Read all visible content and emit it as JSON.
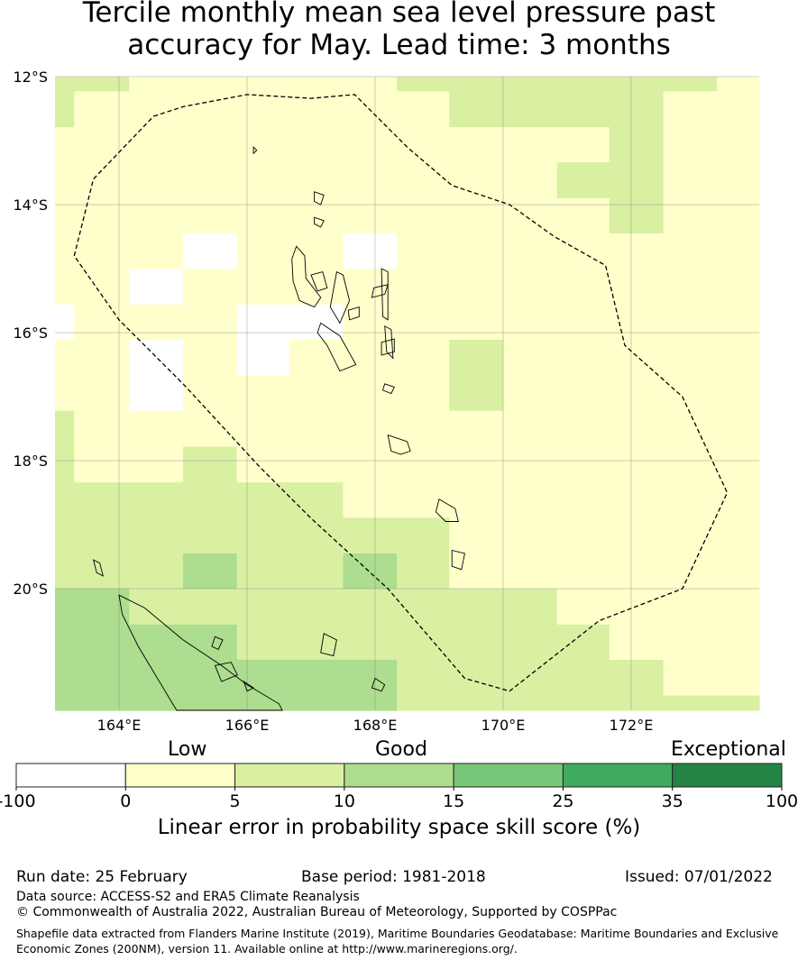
{
  "title_line1": "Tercile monthly mean sea level pressure past",
  "title_line2": "accuracy for May. Lead time: 3 months",
  "map": {
    "lon_range": [
      163.0,
      174.0
    ],
    "lat_range": [
      -21.9,
      -12.0
    ],
    "lat_ticks": [
      {
        "value": -12,
        "label": "12°S"
      },
      {
        "value": -14,
        "label": "14°S"
      },
      {
        "value": -16,
        "label": "16°S"
      },
      {
        "value": -18,
        "label": "18°S"
      },
      {
        "value": -20,
        "label": "20°S"
      }
    ],
    "lon_ticks": [
      {
        "value": 164,
        "label": "164°E"
      },
      {
        "value": 166,
        "label": "166°E"
      },
      {
        "value": 168,
        "label": "168°E"
      },
      {
        "value": 170,
        "label": "170°E"
      },
      {
        "value": 172,
        "label": "172°E"
      }
    ],
    "grid": true,
    "eez_boundary": [
      [
        164.54,
        -12.62
      ],
      [
        165.0,
        -12.47
      ],
      [
        166.0,
        -12.28
      ],
      [
        167.0,
        -12.34
      ],
      [
        167.68,
        -12.28
      ],
      [
        168.5,
        -13.1
      ],
      [
        169.2,
        -13.7
      ],
      [
        170.1,
        -14.0
      ],
      [
        170.8,
        -14.5
      ],
      [
        171.6,
        -14.95
      ],
      [
        171.9,
        -16.2
      ],
      [
        172.8,
        -17.0
      ],
      [
        173.5,
        -18.5
      ],
      [
        172.8,
        -20.0
      ],
      [
        171.5,
        -20.5
      ],
      [
        170.1,
        -21.6
      ],
      [
        169.4,
        -21.4
      ],
      [
        168.2,
        -20.0
      ],
      [
        167.0,
        -18.9
      ],
      [
        166.2,
        -18.1
      ],
      [
        165.0,
        -16.8
      ],
      [
        164.0,
        -15.8
      ],
      [
        163.3,
        -14.8
      ],
      [
        163.6,
        -13.6
      ]
    ],
    "skill_grid": {
      "lon_edges": [
        163.0,
        163.3,
        164.16,
        165.0,
        165.84,
        166.66,
        167.5,
        168.34,
        169.16,
        170.0,
        170.84,
        171.66,
        172.5,
        173.34,
        174.0
      ],
      "lat_edges": [
        -12.0,
        -12.23,
        -12.79,
        -13.34,
        -13.9,
        -14.45,
        -15.0,
        -15.56,
        -16.11,
        -16.67,
        -17.22,
        -17.78,
        -18.34,
        -18.89,
        -19.45,
        -20.0,
        -20.56,
        -21.11,
        -21.67,
        -21.9
      ],
      "rows": [
        [
          2,
          2,
          1,
          1,
          1,
          1,
          1,
          2,
          2,
          2,
          2,
          2,
          2,
          1
        ],
        [
          2,
          1,
          1,
          1,
          1,
          1,
          1,
          1,
          2,
          2,
          2,
          2,
          1,
          1
        ],
        [
          1,
          1,
          1,
          1,
          1,
          1,
          1,
          1,
          1,
          1,
          1,
          2,
          1,
          1
        ],
        [
          1,
          1,
          1,
          1,
          1,
          1,
          1,
          1,
          1,
          1,
          2,
          2,
          1,
          1
        ],
        [
          1,
          1,
          1,
          1,
          1,
          1,
          1,
          1,
          1,
          1,
          1,
          2,
          1,
          1
        ],
        [
          1,
          1,
          1,
          0,
          1,
          1,
          0,
          1,
          1,
          1,
          1,
          1,
          1,
          1
        ],
        [
          1,
          1,
          0,
          1,
          1,
          1,
          1,
          1,
          1,
          1,
          1,
          1,
          1,
          1
        ],
        [
          0,
          1,
          1,
          1,
          0,
          0,
          1,
          1,
          1,
          1,
          1,
          1,
          1,
          1
        ],
        [
          1,
          1,
          0,
          1,
          0,
          1,
          1,
          1,
          2,
          1,
          1,
          1,
          1,
          1
        ],
        [
          1,
          1,
          0,
          1,
          1,
          1,
          1,
          1,
          2,
          1,
          1,
          1,
          1,
          1
        ],
        [
          2,
          1,
          1,
          1,
          1,
          1,
          1,
          1,
          1,
          1,
          1,
          1,
          1,
          1
        ],
        [
          2,
          1,
          1,
          2,
          1,
          1,
          1,
          1,
          1,
          1,
          1,
          1,
          1,
          1
        ],
        [
          2,
          2,
          2,
          2,
          2,
          2,
          1,
          1,
          1,
          1,
          1,
          1,
          1,
          1
        ],
        [
          2,
          2,
          2,
          2,
          2,
          2,
          2,
          2,
          1,
          1,
          1,
          1,
          1,
          1
        ],
        [
          2,
          2,
          2,
          3,
          2,
          2,
          3,
          2,
          1,
          1,
          1,
          1,
          1,
          1
        ],
        [
          3,
          3,
          2,
          2,
          2,
          2,
          2,
          2,
          2,
          2,
          1,
          1,
          1,
          1
        ],
        [
          3,
          3,
          3,
          3,
          2,
          2,
          2,
          2,
          2,
          2,
          2,
          1,
          1,
          1
        ],
        [
          3,
          3,
          3,
          3,
          3,
          3,
          3,
          2,
          2,
          2,
          2,
          2,
          1,
          1
        ],
        [
          3,
          3,
          3,
          3,
          3,
          3,
          3,
          2,
          2,
          2,
          2,
          2,
          2,
          2
        ]
      ]
    },
    "islands": [
      [
        [
          166.77,
          -14.65
        ],
        [
          166.9,
          -14.8
        ],
        [
          166.92,
          -15.15
        ],
        [
          167.15,
          -15.45
        ],
        [
          167.05,
          -15.6
        ],
        [
          166.82,
          -15.5
        ],
        [
          166.72,
          -15.2
        ],
        [
          166.7,
          -14.85
        ]
      ],
      [
        [
          167.0,
          -15.1
        ],
        [
          167.18,
          -15.05
        ],
        [
          167.25,
          -15.3
        ],
        [
          167.1,
          -15.35
        ]
      ],
      [
        [
          167.4,
          -15.05
        ],
        [
          167.5,
          -15.1
        ],
        [
          167.6,
          -15.5
        ],
        [
          167.45,
          -15.85
        ],
        [
          167.3,
          -15.6
        ]
      ],
      [
        [
          167.58,
          -15.65
        ],
        [
          167.75,
          -15.6
        ],
        [
          167.75,
          -15.75
        ],
        [
          167.6,
          -15.8
        ]
      ],
      [
        [
          167.98,
          -15.3
        ],
        [
          168.2,
          -15.25
        ],
        [
          168.15,
          -15.4
        ],
        [
          167.95,
          -15.45
        ]
      ],
      [
        [
          168.1,
          -15.0
        ],
        [
          168.2,
          -15.05
        ],
        [
          168.2,
          -15.8
        ],
        [
          168.12,
          -15.75
        ]
      ],
      [
        [
          168.15,
          -15.9
        ],
        [
          168.25,
          -15.95
        ],
        [
          168.28,
          -16.4
        ],
        [
          168.18,
          -16.3
        ]
      ],
      [
        [
          167.15,
          -15.85
        ],
        [
          167.45,
          -16.05
        ],
        [
          167.7,
          -16.5
        ],
        [
          167.45,
          -16.6
        ],
        [
          167.25,
          -16.2
        ],
        [
          167.1,
          -16.0
        ]
      ],
      [
        [
          168.1,
          -16.15
        ],
        [
          168.3,
          -16.1
        ],
        [
          168.3,
          -16.3
        ],
        [
          168.1,
          -16.35
        ]
      ],
      [
        [
          168.15,
          -16.8
        ],
        [
          168.3,
          -16.85
        ],
        [
          168.25,
          -16.95
        ],
        [
          168.12,
          -16.9
        ]
      ],
      [
        [
          168.2,
          -17.6
        ],
        [
          168.5,
          -17.7
        ],
        [
          168.55,
          -17.85
        ],
        [
          168.4,
          -17.9
        ],
        [
          168.25,
          -17.85
        ]
      ],
      [
        [
          169.0,
          -18.6
        ],
        [
          169.25,
          -18.75
        ],
        [
          169.3,
          -18.95
        ],
        [
          169.1,
          -18.95
        ],
        [
          168.95,
          -18.8
        ]
      ],
      [
        [
          169.2,
          -19.4
        ],
        [
          169.4,
          -19.45
        ],
        [
          169.35,
          -19.7
        ],
        [
          169.2,
          -19.65
        ]
      ],
      [
        [
          167.2,
          -20.7
        ],
        [
          167.4,
          -20.8
        ],
        [
          167.35,
          -21.05
        ],
        [
          167.15,
          -21.0
        ]
      ],
      [
        [
          168.0,
          -21.4
        ],
        [
          168.15,
          -21.5
        ],
        [
          168.1,
          -21.6
        ],
        [
          167.95,
          -21.55
        ]
      ],
      [
        [
          166.1,
          -13.1
        ],
        [
          166.15,
          -13.15
        ],
        [
          166.1,
          -13.2
        ]
      ],
      [
        [
          167.05,
          -13.8
        ],
        [
          167.2,
          -13.85
        ],
        [
          167.15,
          -14.0
        ],
        [
          167.05,
          -13.95
        ]
      ],
      [
        [
          167.05,
          -14.2
        ],
        [
          167.2,
          -14.25
        ],
        [
          167.15,
          -14.35
        ],
        [
          167.05,
          -14.3
        ]
      ],
      [
        [
          164.0,
          -20.1
        ],
        [
          164.4,
          -20.3
        ],
        [
          165.0,
          -20.8
        ],
        [
          165.6,
          -21.2
        ],
        [
          166.0,
          -21.5
        ],
        [
          166.5,
          -21.8
        ],
        [
          166.55,
          -21.9
        ],
        [
          164.9,
          -21.9
        ],
        [
          164.6,
          -21.4
        ],
        [
          164.3,
          -20.9
        ],
        [
          164.05,
          -20.4
        ]
      ],
      [
        [
          165.5,
          -20.75
        ],
        [
          165.62,
          -20.8
        ],
        [
          165.55,
          -20.95
        ],
        [
          165.45,
          -20.9
        ]
      ],
      [
        [
          165.5,
          -21.2
        ],
        [
          165.75,
          -21.15
        ],
        [
          165.85,
          -21.35
        ],
        [
          165.6,
          -21.45
        ]
      ],
      [
        [
          165.95,
          -21.45
        ],
        [
          166.1,
          -21.55
        ],
        [
          166.0,
          -21.6
        ]
      ],
      [
        [
          163.6,
          -19.55
        ],
        [
          163.7,
          -19.6
        ],
        [
          163.75,
          -19.8
        ],
        [
          163.65,
          -19.75
        ]
      ]
    ]
  },
  "colorbar": {
    "categories": [
      "Low",
      "Good",
      "Exceptional"
    ],
    "ticks": [
      "-100",
      "0",
      "5",
      "10",
      "15",
      "25",
      "35",
      "100"
    ],
    "colors": [
      "#ffffff",
      "#ffffcc",
      "#d9f0a3",
      "#addd8e",
      "#78c679",
      "#41ab5d",
      "#238443"
    ],
    "label": "Linear error in probability space skill score (%)"
  },
  "footer": {
    "run_date": "Run date: 25 February",
    "base_period": "Base period: 1981-2018",
    "issued": "Issued: 07/01/2022",
    "data_source": "Data source: ACCESS-S2 and ERA5 Climate Reanalysis",
    "copyright": "© Commonwealth of Australia 2022, Australian Bureau of Meteorology, Supported by COSPPac",
    "shapefile_line1": "Shapefile data extracted from Flanders Marine Institute (2019), Maritime Boundaries Geodatabase: Maritime Boundaries and Exclusive",
    "shapefile_line2": "Economic Zones (200NM), version 11. Available online at http://www.marineregions.org/."
  }
}
